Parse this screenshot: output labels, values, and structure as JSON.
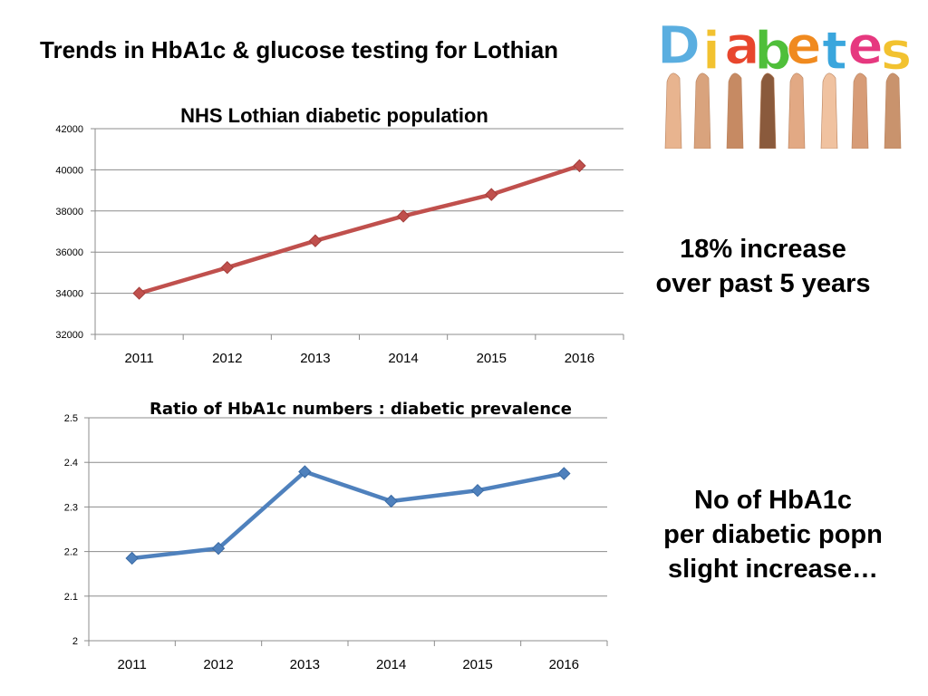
{
  "slide": {
    "title": "Trends in HbA1c & glucose testing for Lothian",
    "logo_text": "Diabetes",
    "logo_letter_colors": [
      "#5aaee0",
      "#f2c230",
      "#e8462d",
      "#4fbf3a",
      "#f08a1f",
      "#3aa6dd",
      "#e6387f",
      "#f2c230"
    ],
    "callout_1": {
      "line1": "18% increase",
      "line2": "over past 5 years"
    },
    "callout_2": {
      "line1": "No of HbA1c",
      "line2": "per diabetic popn",
      "line3": "slight increase…"
    }
  },
  "chart_data": [
    {
      "type": "line",
      "title": "NHS Lothian diabetic population",
      "xlabel": "",
      "ylabel": "",
      "categories": [
        "2011",
        "2012",
        "2013",
        "2014",
        "2015",
        "2016"
      ],
      "series": [
        {
          "values": [
            34000,
            35250,
            36550,
            37750,
            38800,
            40200
          ],
          "color": "#c0504d"
        }
      ],
      "ylim": [
        32000,
        42000
      ],
      "yticks": [
        32000,
        34000,
        36000,
        38000,
        40000,
        42000
      ],
      "ytick_labels": [
        "32000",
        "34000",
        "36000",
        "38000",
        "40000",
        "42000"
      ],
      "grid": true,
      "legend": "none"
    },
    {
      "type": "line",
      "title": "Ratio of HbA1c numbers : diabetic prevalence",
      "xlabel": "",
      "ylabel": "",
      "categories": [
        "2011",
        "2012",
        "2013",
        "2014",
        "2015",
        "2016"
      ],
      "series": [
        {
          "values": [
            2.185,
            2.207,
            2.379,
            2.313,
            2.337,
            2.375
          ],
          "color": "#4f81bd"
        }
      ],
      "ylim": [
        2.0,
        2.5
      ],
      "yticks": [
        2.0,
        2.1,
        2.2,
        2.3,
        2.4,
        2.5
      ],
      "ytick_labels": [
        "2",
        "2.1",
        "2.2",
        "2.3",
        "2.4",
        "2.5"
      ],
      "grid": true,
      "legend": "none"
    }
  ]
}
